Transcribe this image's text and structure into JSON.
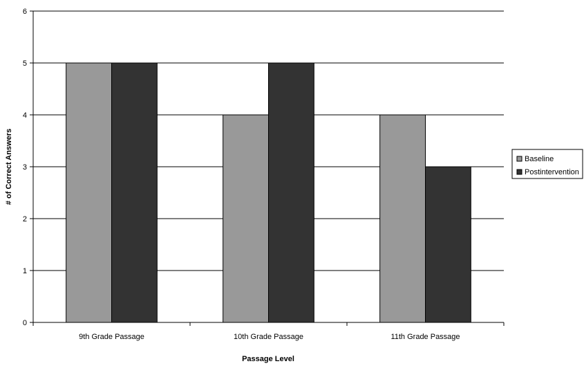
{
  "chart_data": {
    "type": "bar",
    "title": "",
    "xlabel": "Passage Level",
    "ylabel": "# of Correct Answers",
    "categories": [
      "9th Grade Passage",
      "10th Grade Passage",
      "11th Grade Passage"
    ],
    "series": [
      {
        "name": "Baseline",
        "values": [
          5,
          4,
          4
        ],
        "color": "#999999"
      },
      {
        "name": "Postintervention",
        "values": [
          5,
          5,
          3
        ],
        "color": "#333333"
      }
    ],
    "ylim": [
      0,
      6
    ],
    "yticks": [
      "0",
      "1",
      "2",
      "3",
      "4",
      "5",
      "6"
    ],
    "grid": true,
    "legend_position": "right",
    "colors": {
      "gridline": "#000000",
      "bar_outline": "#000000"
    }
  }
}
